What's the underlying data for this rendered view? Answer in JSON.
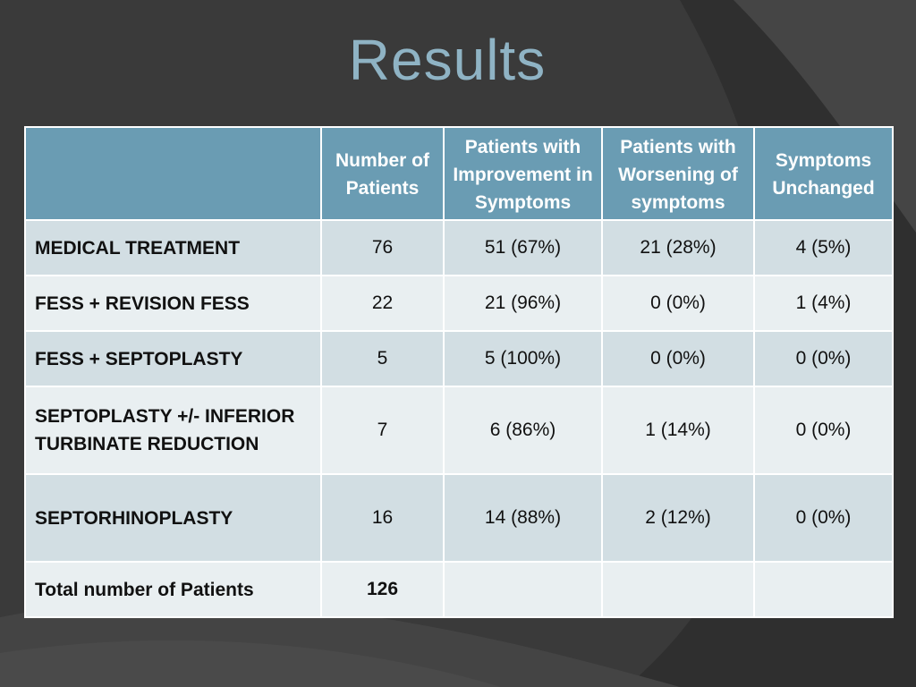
{
  "slide": {
    "title": "Results"
  },
  "colors": {
    "background": "#3b3b3b",
    "title": "#8fb3c4",
    "header_bg": "#6a9cb3",
    "row_dark": "#d2dee3",
    "row_light": "#e9eff1"
  },
  "table": {
    "headers": [
      "",
      "Number of Patients",
      "Patients with Improvement in  Symptoms",
      "Patients with Worsening of symptoms",
      "Symptoms Unchanged"
    ],
    "rows": [
      {
        "label": "MEDICAL TREATMENT",
        "number": "76",
        "improvement": "51  (67%)",
        "worsening": "21  (28%)",
        "unchanged": "4  (5%)"
      },
      {
        "label": "FESS + REVISION FESS",
        "number": "22",
        "improvement": "21  (96%)",
        "worsening": "0  (0%)",
        "unchanged": "1  (4%)"
      },
      {
        "label": "FESS + SEPTOPLASTY",
        "number": "5",
        "improvement": "5  (100%)",
        "worsening": "0  (0%)",
        "unchanged": "0  (0%)"
      },
      {
        "label": "SEPTOPLASTY +/- INFERIOR TURBINATE REDUCTION",
        "number": "7",
        "improvement": "6  (86%)",
        "worsening": "1  (14%)",
        "unchanged": "0  (0%)"
      },
      {
        "label": "SEPTORHINOPLASTY",
        "number": "16",
        "improvement": "14  (88%)",
        "worsening": "2  (12%)",
        "unchanged": "0  (0%)"
      },
      {
        "label": "Total number of Patients",
        "number": "126",
        "improvement": "",
        "worsening": "",
        "unchanged": ""
      }
    ]
  }
}
